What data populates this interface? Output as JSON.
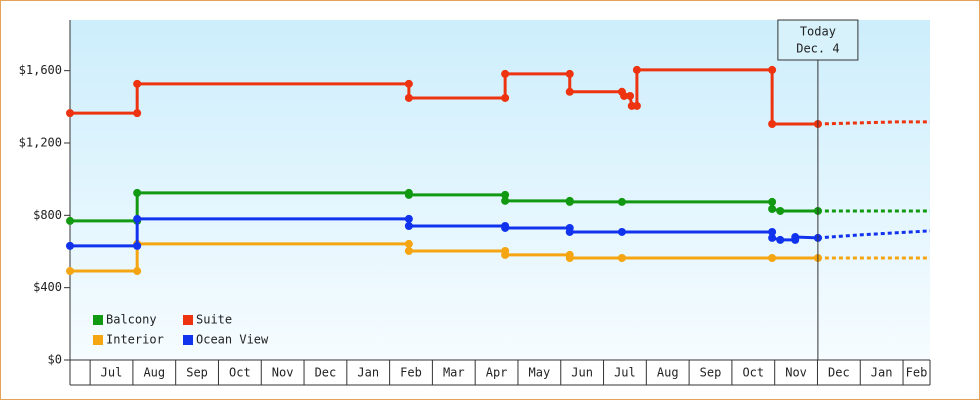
{
  "chart_data": {
    "type": "step-line",
    "xlim": [
      0.53,
      20.63
    ],
    "xticks": [
      {
        "value": 1.5,
        "label": "Jul"
      },
      {
        "value": 2.5,
        "label": "Aug"
      },
      {
        "value": 3.5,
        "label": "Sep"
      },
      {
        "value": 4.5,
        "label": "Oct"
      },
      {
        "value": 5.5,
        "label": "Nov"
      },
      {
        "value": 6.5,
        "label": "Dec"
      },
      {
        "value": 7.5,
        "label": "Jan"
      },
      {
        "value": 8.5,
        "label": "Feb"
      },
      {
        "value": 9.5,
        "label": "Mar"
      },
      {
        "value": 10.5,
        "label": "Apr"
      },
      {
        "value": 11.5,
        "label": "May"
      },
      {
        "value": 12.5,
        "label": "Jun"
      },
      {
        "value": 13.5,
        "label": "Jul"
      },
      {
        "value": 14.5,
        "label": "Aug"
      },
      {
        "value": 15.5,
        "label": "Sep"
      },
      {
        "value": 16.5,
        "label": "Oct"
      },
      {
        "value": 17.5,
        "label": "Nov"
      },
      {
        "value": 18.5,
        "label": "Dec"
      },
      {
        "value": 19.5,
        "label": "Jan"
      },
      {
        "value": 20.5,
        "label": "Feb"
      }
    ],
    "ylim": [
      0,
      1880
    ],
    "yticks": [
      {
        "value": 0,
        "label": "$0"
      },
      {
        "value": 400,
        "label": "$400"
      },
      {
        "value": 800,
        "label": "$800"
      },
      {
        "value": 1200,
        "label": "$1,200"
      },
      {
        "value": 1600,
        "label": "$1,600"
      }
    ],
    "marker": {
      "x": 18.01,
      "label_lines": [
        "Today",
        "Dec. 4"
      ]
    },
    "series": [
      {
        "name": "Balcony",
        "color": "#119911",
        "x": [
          0.53,
          2.1,
          2.1,
          8.45,
          8.45,
          10.7,
          10.7,
          12.21,
          12.21,
          13.43,
          16.94,
          16.94,
          17.13,
          18.01
        ],
        "values": [
          769,
          769,
          924,
          924,
          913,
          913,
          880,
          880,
          874,
          874,
          874,
          835,
          824,
          824
        ],
        "forecast_x": [
          18.01,
          20.63
        ],
        "forecast_values": [
          824,
          824
        ]
      },
      {
        "name": "Suite",
        "color": "#ee3311",
        "x": [
          0.53,
          2.1,
          2.1,
          8.45,
          8.45,
          10.7,
          10.7,
          12.21,
          12.21,
          13.43,
          13.48,
          13.62,
          13.66,
          13.78,
          13.78,
          16.94,
          16.94,
          18.01
        ],
        "values": [
          1365,
          1365,
          1527,
          1527,
          1449,
          1449,
          1582,
          1582,
          1483,
          1483,
          1460,
          1460,
          1405,
          1405,
          1604,
          1604,
          1305,
          1305
        ],
        "forecast_x": [
          18.01,
          19.9,
          20.63
        ],
        "forecast_values": [
          1305,
          1317,
          1317
        ]
      },
      {
        "name": "Interior",
        "color": "#f5a511",
        "x": [
          0.53,
          2.1,
          2.1,
          8.45,
          8.45,
          10.7,
          10.7,
          12.21,
          12.21,
          13.43,
          16.94,
          18.01
        ],
        "values": [
          492,
          492,
          642,
          642,
          603,
          603,
          581,
          581,
          564,
          564,
          564,
          564
        ],
        "forecast_x": [
          18.01,
          20.63
        ],
        "forecast_values": [
          564,
          564
        ]
      },
      {
        "name": "Ocean View",
        "color": "#1133ee",
        "x": [
          0.53,
          2.1,
          2.1,
          8.45,
          8.45,
          10.7,
          10.7,
          12.21,
          12.21,
          13.43,
          16.94,
          16.94,
          17.13,
          17.48,
          17.48,
          18.01
        ],
        "values": [
          631,
          631,
          780,
          780,
          741,
          741,
          730,
          730,
          708,
          708,
          708,
          675,
          664,
          664,
          680,
          675
        ],
        "forecast_x": [
          18.01,
          19.0,
          20.63
        ],
        "forecast_values": [
          675,
          692,
          714
        ]
      }
    ]
  }
}
